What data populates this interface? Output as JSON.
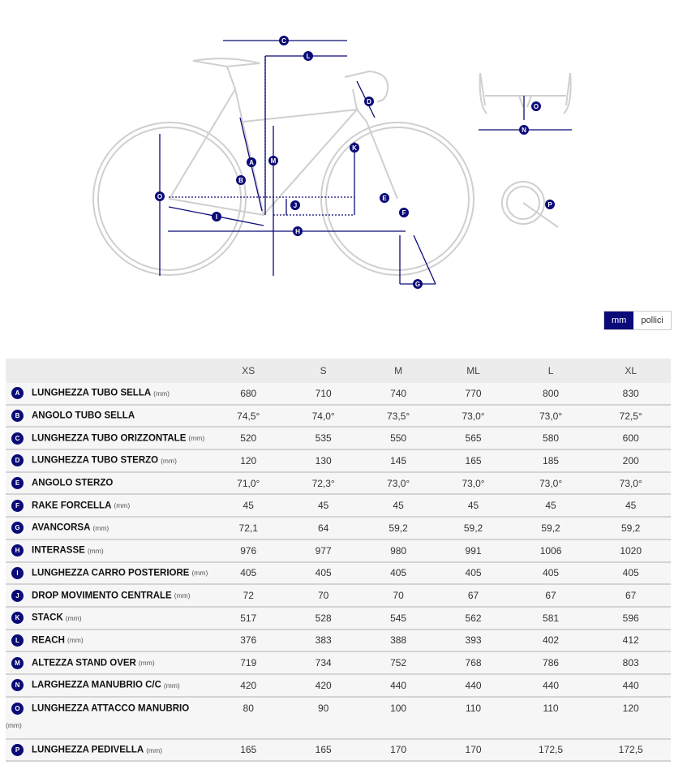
{
  "diagram": {
    "markers": [
      "A",
      "B",
      "C",
      "D",
      "E",
      "F",
      "G",
      "H",
      "I",
      "J",
      "K",
      "L",
      "M",
      "N",
      "O",
      "O",
      "P"
    ]
  },
  "colors": {
    "accent": "#0a0a78",
    "frame": "#cfcfcf"
  },
  "unit_toggle": {
    "mm": "mm",
    "inches": "pollici",
    "selected": "mm"
  },
  "table": {
    "sizes": [
      "XS",
      "S",
      "M",
      "ML",
      "L",
      "XL"
    ],
    "rows": [
      {
        "key": "A",
        "label": "LUNGHEZZA TUBO SELLA",
        "unit": "(mm)",
        "values": [
          "680",
          "710",
          "740",
          "770",
          "800",
          "830"
        ]
      },
      {
        "key": "B",
        "label": "ANGOLO TUBO SELLA",
        "unit": "",
        "values": [
          "74,5°",
          "74,0°",
          "73,5°",
          "73,0°",
          "73,0°",
          "72,5°"
        ]
      },
      {
        "key": "C",
        "label": "LUNGHEZZA TUBO ORIZZONTALE",
        "unit": "(mm)",
        "values": [
          "520",
          "535",
          "550",
          "565",
          "580",
          "600"
        ]
      },
      {
        "key": "D",
        "label": "LUNGHEZZA TUBO STERZO",
        "unit": "(mm)",
        "values": [
          "120",
          "130",
          "145",
          "165",
          "185",
          "200"
        ]
      },
      {
        "key": "E",
        "label": "ANGOLO STERZO",
        "unit": "",
        "values": [
          "71,0°",
          "72,3°",
          "73,0°",
          "73,0°",
          "73,0°",
          "73,0°"
        ]
      },
      {
        "key": "F",
        "label": "RAKE FORCELLA",
        "unit": "(mm)",
        "values": [
          "45",
          "45",
          "45",
          "45",
          "45",
          "45"
        ]
      },
      {
        "key": "G",
        "label": "AVANCORSA",
        "unit": "(mm)",
        "values": [
          "72,1",
          "64",
          "59,2",
          "59,2",
          "59,2",
          "59,2"
        ]
      },
      {
        "key": "H",
        "label": "INTERASSE",
        "unit": "(mm)",
        "values": [
          "976",
          "977",
          "980",
          "991",
          "1006",
          "1020"
        ]
      },
      {
        "key": "I",
        "label": "LUNGHEZZA CARRO POSTERIORE",
        "unit": "(mm)",
        "values": [
          "405",
          "405",
          "405",
          "405",
          "405",
          "405"
        ]
      },
      {
        "key": "J",
        "label": "DROP MOVIMENTO CENTRALE",
        "unit": "(mm)",
        "values": [
          "72",
          "70",
          "70",
          "67",
          "67",
          "67"
        ]
      },
      {
        "key": "K",
        "label": "STACK",
        "unit": "(mm)",
        "values": [
          "517",
          "528",
          "545",
          "562",
          "581",
          "596"
        ]
      },
      {
        "key": "L",
        "label": "REACH",
        "unit": "(mm)",
        "values": [
          "376",
          "383",
          "388",
          "393",
          "402",
          "412"
        ]
      },
      {
        "key": "M",
        "label": "ALTEZZA STAND OVER",
        "unit": "(mm)",
        "values": [
          "719",
          "734",
          "752",
          "768",
          "786",
          "803"
        ]
      },
      {
        "key": "N",
        "label": "LARGHEZZA MANUBRIO C/C",
        "unit": "(mm)",
        "values": [
          "420",
          "420",
          "440",
          "440",
          "440",
          "440"
        ]
      },
      {
        "key": "O",
        "label": "LUNGHEZZA ATTACCO MANUBRIO",
        "unit": "(mm)",
        "values": [
          "80",
          "90",
          "100",
          "110",
          "110",
          "120"
        ]
      },
      {
        "key": "P",
        "label": "LUNGHEZZA PEDIVELLA",
        "unit": "(mm)",
        "values": [
          "165",
          "165",
          "170",
          "170",
          "172,5",
          "172,5"
        ]
      }
    ]
  }
}
